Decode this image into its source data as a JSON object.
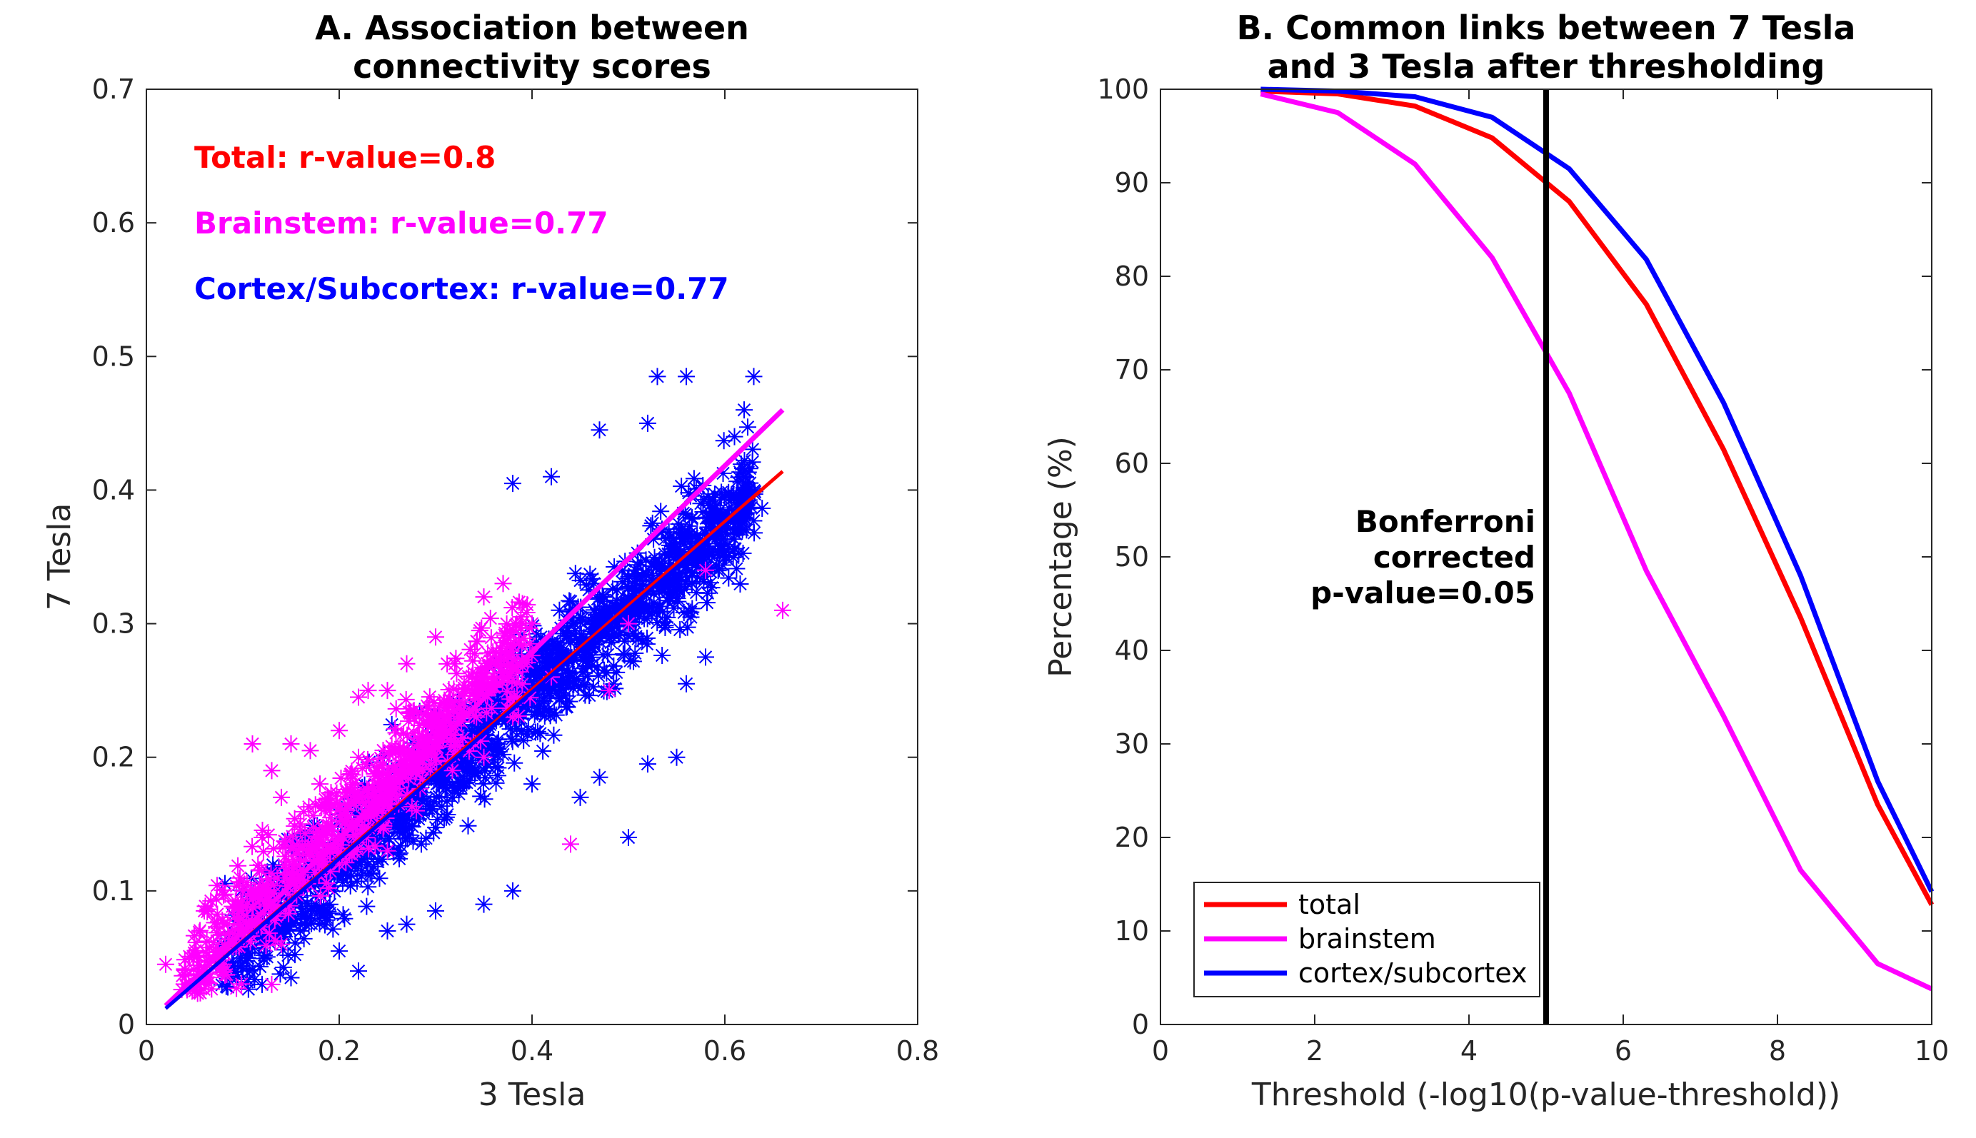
{
  "chart_data": [
    {
      "type": "scatter",
      "title": "A. Association between connectivity scores",
      "title_lines": [
        "A. Association between",
        "connectivity scores"
      ],
      "xlabel": "3 Tesla",
      "ylabel": "7 Tesla",
      "xlim": [
        0,
        0.8
      ],
      "ylim": [
        0,
        0.7
      ],
      "xticks": [
        0,
        0.2,
        0.4,
        0.6,
        0.8
      ],
      "xtick_labels": [
        "0",
        "0.2",
        "0.4",
        "0.6",
        "0.8"
      ],
      "yticks": [
        0,
        0.1,
        0.2,
        0.3,
        0.4,
        0.5,
        0.6,
        0.7
      ],
      "ytick_labels": [
        "0",
        "0.1",
        "0.2",
        "0.3",
        "0.4",
        "0.5",
        "0.6",
        "0.7"
      ],
      "annotations": [
        {
          "text": "Total: r-value=0.8",
          "color": "#ff0000"
        },
        {
          "text": "Brainstem: r-value=0.77",
          "color": "#ff00ff"
        },
        {
          "text": "Cortex/Subcortex: r-value=0.77",
          "color": "#0000ff"
        }
      ],
      "series": [
        {
          "name": "Cortex/Subcortex",
          "color": "#0000ff",
          "marker": "*",
          "cloud": {
            "x_range": [
              0.08,
              0.63
            ],
            "slope": 0.62,
            "intercept": 0.002,
            "spread": 0.045
          },
          "points": [
            [
              0.56,
              0.485
            ],
            [
              0.63,
              0.485
            ],
            [
              0.53,
              0.485
            ],
            [
              0.52,
              0.45
            ],
            [
              0.47,
              0.445
            ],
            [
              0.38,
              0.405
            ],
            [
              0.42,
              0.41
            ],
            [
              0.61,
              0.44
            ],
            [
              0.62,
              0.46
            ],
            [
              0.58,
              0.35
            ],
            [
              0.59,
              0.38
            ],
            [
              0.6,
              0.375
            ],
            [
              0.58,
              0.275
            ],
            [
              0.56,
              0.255
            ],
            [
              0.55,
              0.2
            ],
            [
              0.52,
              0.195
            ],
            [
              0.5,
              0.14
            ],
            [
              0.47,
              0.185
            ],
            [
              0.45,
              0.17
            ],
            [
              0.4,
              0.18
            ],
            [
              0.38,
              0.1
            ],
            [
              0.35,
              0.09
            ],
            [
              0.3,
              0.085
            ],
            [
              0.27,
              0.075
            ],
            [
              0.22,
              0.04
            ],
            [
              0.15,
              0.035
            ],
            [
              0.12,
              0.03
            ],
            [
              0.16,
              0.07
            ],
            [
              0.1,
              0.06
            ],
            [
              0.2,
              0.055
            ],
            [
              0.25,
              0.07
            ]
          ]
        },
        {
          "name": "Brainstem",
          "color": "#ff00ff",
          "marker": "*",
          "cloud": {
            "x_range": [
              0.04,
              0.4
            ],
            "slope": 0.7,
            "intercept": 0.01,
            "spread": 0.04
          },
          "points": [
            [
              0.02,
              0.045
            ],
            [
              0.05,
              0.025
            ],
            [
              0.06,
              0.085
            ],
            [
              0.08,
              0.045
            ],
            [
              0.09,
              0.06
            ],
            [
              0.1,
              0.1
            ],
            [
              0.12,
              0.14
            ],
            [
              0.14,
              0.17
            ],
            [
              0.15,
              0.21
            ],
            [
              0.17,
              0.205
            ],
            [
              0.2,
              0.22
            ],
            [
              0.22,
              0.245
            ],
            [
              0.23,
              0.25
            ],
            [
              0.25,
              0.25
            ],
            [
              0.27,
              0.27
            ],
            [
              0.3,
              0.29
            ],
            [
              0.32,
              0.27
            ],
            [
              0.35,
              0.32
            ],
            [
              0.37,
              0.33
            ],
            [
              0.4,
              0.3
            ],
            [
              0.38,
              0.23
            ],
            [
              0.35,
              0.2
            ],
            [
              0.3,
              0.2
            ],
            [
              0.28,
              0.16
            ],
            [
              0.25,
              0.13
            ],
            [
              0.2,
              0.12
            ],
            [
              0.15,
              0.11
            ],
            [
              0.44,
              0.135
            ],
            [
              0.48,
              0.25
            ],
            [
              0.66,
              0.31
            ],
            [
              0.58,
              0.34
            ],
            [
              0.5,
              0.3
            ],
            [
              0.42,
              0.26
            ],
            [
              0.11,
              0.21
            ],
            [
              0.13,
              0.19
            ],
            [
              0.18,
              0.18
            ],
            [
              0.16,
              0.15
            ],
            [
              0.22,
              0.2
            ],
            [
              0.19,
              0.16
            ],
            [
              0.14,
              0.06
            ],
            [
              0.13,
              0.03
            ]
          ]
        }
      ],
      "fit_lines": [
        {
          "name": "Total",
          "color": "#ff0000",
          "x": [
            0.02,
            0.66
          ],
          "y": [
            0.012,
            0.414
          ]
        },
        {
          "name": "Brainstem",
          "color": "#ff00ff",
          "x": [
            0.02,
            0.66
          ],
          "y": [
            0.014,
            0.46
          ]
        },
        {
          "name": "Cortex/Subcortex",
          "color": "#0000ff",
          "x": [
            0.02,
            0.63
          ],
          "y": [
            0.012,
            0.392
          ]
        }
      ]
    },
    {
      "type": "line",
      "title": "B. Common links between 7 Tesla and 3 Tesla after thresholding",
      "title_lines": [
        "B. Common links between 7 Tesla",
        "and 3 Tesla after thresholding"
      ],
      "xlabel": "Threshold (-log10(p-value-threshold))",
      "ylabel": "Percentage (%)",
      "xlim": [
        0,
        10
      ],
      "ylim": [
        0,
        100
      ],
      "xticks": [
        0,
        2,
        4,
        6,
        8,
        10
      ],
      "xtick_labels": [
        "0",
        "2",
        "4",
        "6",
        "8",
        "10"
      ],
      "yticks": [
        0,
        10,
        20,
        30,
        40,
        50,
        60,
        70,
        80,
        90,
        100
      ],
      "ytick_labels": [
        "0",
        "10",
        "20",
        "30",
        "40",
        "50",
        "60",
        "70",
        "80",
        "90",
        "100"
      ],
      "x": [
        1.3,
        2.3,
        3.3,
        4.3,
        5.3,
        6.3,
        7.3,
        8.3,
        9.3,
        10
      ],
      "series": [
        {
          "name": "total",
          "color": "#ff0000",
          "values": [
            99.8,
            99.5,
            98.2,
            94.8,
            88.0,
            77.0,
            61.5,
            43.5,
            23.5,
            12.8
          ]
        },
        {
          "name": "brainstem",
          "color": "#ff00ff",
          "values": [
            99.5,
            97.5,
            92.0,
            82.0,
            67.5,
            48.5,
            33.0,
            16.5,
            6.5,
            3.8
          ]
        },
        {
          "name": "cortex/subcortex",
          "color": "#0000ff",
          "values": [
            100,
            99.8,
            99.2,
            97.0,
            91.5,
            81.8,
            66.5,
            48.0,
            26.0,
            14.2
          ]
        }
      ],
      "vertical_line": {
        "x": 5.0,
        "label_lines": [
          "Bonferroni",
          "corrected",
          "p-value=0.05"
        ]
      },
      "legend_position": "bottom-left"
    }
  ]
}
